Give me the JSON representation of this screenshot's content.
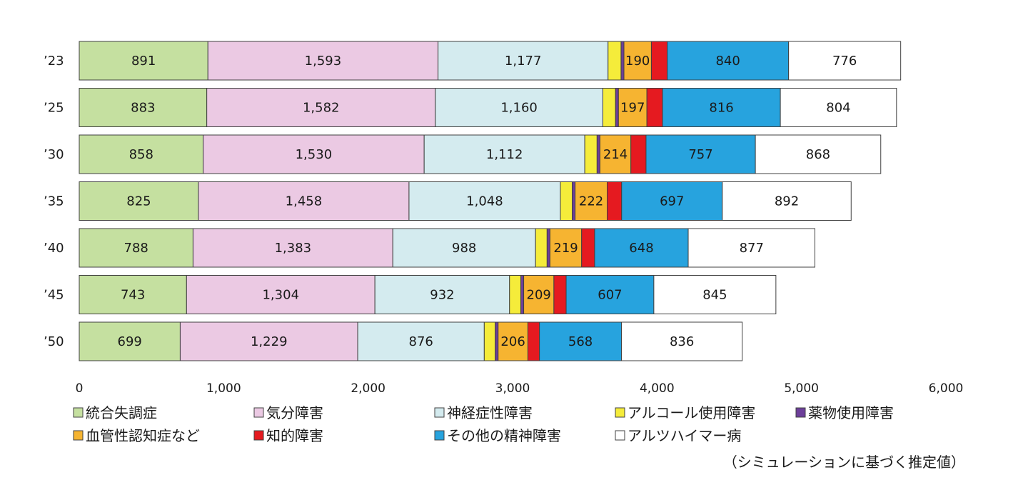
{
  "chart_data": {
    "type": "bar",
    "orientation": "horizontal",
    "stacked": true,
    "categories": [
      "’23",
      "’25",
      "’30",
      "’35",
      "’40",
      "’45",
      "’50"
    ],
    "xlim": [
      0,
      6000
    ],
    "xticks": [
      0,
      1000,
      2000,
      3000,
      4000,
      5000,
      6000
    ],
    "xtick_labels": [
      "0",
      "1,000",
      "2,000",
      "3,000",
      "4,000",
      "5,000",
      "6,000"
    ],
    "grid": false,
    "legend_position": "bottom",
    "note": "（シミュレーションに基づく推定値）",
    "series": [
      {
        "name": "統合失調症",
        "color": "#c5e0a0",
        "values": [
          891,
          883,
          858,
          825,
          788,
          743,
          699
        ],
        "labeled": true
      },
      {
        "name": "気分障害",
        "color": "#ebc9e3",
        "values": [
          1593,
          1582,
          1530,
          1458,
          1383,
          1304,
          1229
        ],
        "labeled": true
      },
      {
        "name": "神経症性障害",
        "color": "#d4ebef",
        "values": [
          1177,
          1160,
          1112,
          1048,
          988,
          932,
          876
        ],
        "labeled": true
      },
      {
        "name": "アルコール使用障害",
        "color": "#f5ec3a",
        "values": [
          90,
          88,
          85,
          82,
          80,
          78,
          76
        ],
        "labeled": false
      },
      {
        "name": "薬物使用障害",
        "color": "#6d3f9a",
        "values": [
          20,
          20,
          20,
          20,
          20,
          20,
          20
        ],
        "labeled": false
      },
      {
        "name": "血管性認知症など",
        "color": "#f6b431",
        "values": [
          190,
          197,
          214,
          222,
          219,
          209,
          206
        ],
        "labeled": true
      },
      {
        "name": "知的障害",
        "color": "#e51a20",
        "values": [
          110,
          108,
          105,
          100,
          90,
          85,
          80
        ],
        "labeled": false
      },
      {
        "name": "その他の精神障害",
        "color": "#27a3de",
        "values": [
          840,
          816,
          757,
          697,
          648,
          607,
          568
        ],
        "labeled": true
      },
      {
        "name": "アルツハイマー病",
        "color": "#ffffff",
        "values": [
          776,
          804,
          868,
          892,
          877,
          845,
          836
        ],
        "labeled": true
      }
    ]
  }
}
